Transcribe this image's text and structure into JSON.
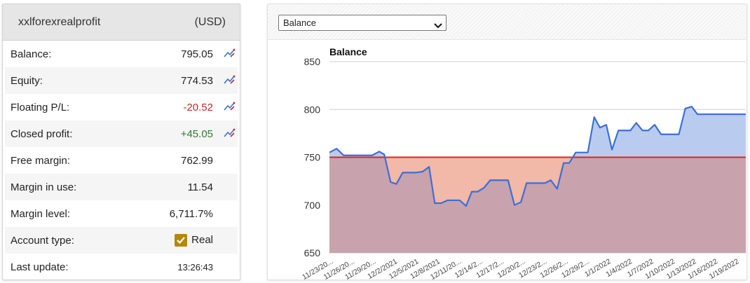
{
  "account": {
    "name": "xxlforexrealprofit",
    "currency": "(USD)",
    "rows": [
      {
        "label": "Balance:",
        "value": "795.05"
      },
      {
        "label": "Equity:",
        "value": "774.53"
      },
      {
        "label": "Floating P/L:",
        "value": "-20.52"
      },
      {
        "label": "Closed profit:",
        "value": "+45.05"
      },
      {
        "label": "Free margin:",
        "value": "762.99"
      },
      {
        "label": "Margin in use:",
        "value": "11.54"
      },
      {
        "label": "Margin level:",
        "value": "6,711.7%"
      },
      {
        "label": "Account type:",
        "value": "Real"
      },
      {
        "label": "Last update:",
        "value": "13:26:43"
      }
    ]
  },
  "chart_selector": {
    "selected": "Balance"
  },
  "colors": {
    "line": "#3b6fd6",
    "above_fill": "#b9ccf0",
    "below_fill": "#f2b8a8",
    "base_fill": "#c8a2ad",
    "reference": "#d42a1a",
    "negative": "#c62828",
    "positive": "#2e7d32",
    "checkbox": "#b8860b"
  },
  "chart_data": {
    "type": "area",
    "title": "Balance",
    "xlabel": "",
    "ylabel": "",
    "ylim": [
      650,
      850
    ],
    "y_ticks": [
      650,
      700,
      750,
      800,
      850
    ],
    "reference_value": 750,
    "x_tick_labels": [
      "11/23/20...",
      "11/26/20...",
      "11/29/20...",
      "12/2/2021",
      "12/5/2021",
      "12/8/2021",
      "12/11/20...",
      "12/14/2...",
      "12/17/2...",
      "12/20/2...",
      "12/23/2...",
      "12/26/2...",
      "12/29/2...",
      "1/1/2022",
      "1/4/2022",
      "1/7/2022",
      "1/10/2022",
      "1/13/2022",
      "1/16/2022",
      "1/19/2022"
    ],
    "x_tick_positions": [
      0,
      3,
      6,
      9,
      12,
      15,
      18,
      21,
      24,
      27,
      30,
      33,
      36,
      39,
      42,
      45,
      48,
      51,
      54,
      57
    ],
    "x": [
      0,
      1,
      2,
      3,
      4,
      5,
      6,
      7,
      7.7,
      8.6,
      9.4,
      10.3,
      11.3,
      12.2,
      13.1,
      14,
      14.8,
      15.7,
      16.6,
      17.4,
      18.3,
      19.2,
      20,
      20.8,
      21.7,
      22.6,
      23.4,
      24.3,
      25.1,
      26,
      26.9,
      27.7,
      28.6,
      29.4,
      30.3,
      31.1,
      32,
      32.9,
      33.7,
      34.6,
      35.4,
      36.3,
      37.2,
      38,
      38.9,
      39.7,
      40.6,
      41.4,
      42.3,
      43.1,
      44,
      44.8,
      45.7,
      46.6,
      47.4,
      48.3,
      49.1,
      50,
      50.9,
      51.7,
      52.6,
      53.4,
      54.3,
      55.1,
      56,
      56.9,
      57.7,
      58.5
    ],
    "values": [
      755,
      759,
      752,
      752,
      752,
      752,
      752,
      756,
      753,
      724,
      722,
      734,
      734,
      734,
      735,
      740,
      702,
      702,
      705,
      705,
      705,
      699,
      714,
      714,
      718,
      726,
      726,
      726,
      726,
      700,
      703,
      723,
      723,
      723,
      723,
      726,
      717,
      744,
      744,
      755,
      755,
      755,
      792,
      781,
      784,
      758,
      778,
      778,
      778,
      786,
      778,
      778,
      784,
      774,
      774,
      774,
      774,
      801,
      803,
      795,
      795,
      795,
      795,
      795,
      795,
      795,
      795,
      795
    ]
  }
}
